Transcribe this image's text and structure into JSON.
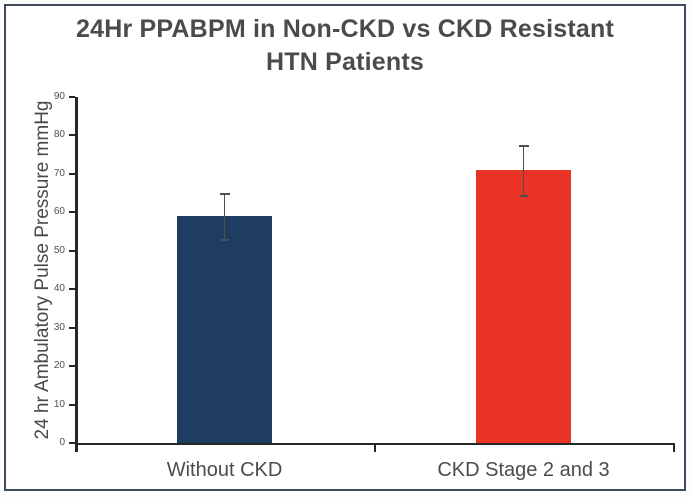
{
  "chart_data": {
    "type": "bar",
    "title": "24Hr PPABPM in Non-CKD vs CKD Resistant HTN Patients",
    "title_lines": [
      "24Hr PPABPM in Non-CKD vs CKD Resistant",
      "HTN Patients"
    ],
    "ylabel": "24 hr Ambulatory Pulse Pressure mmHg",
    "xlabel": "",
    "categories": [
      "Without CKD",
      "CKD Stage 2 and 3"
    ],
    "values": [
      59,
      71
    ],
    "error_bars": [
      6,
      6.5
    ],
    "bar_colors": [
      "#1f3c61",
      "#e93425"
    ],
    "ylim": [
      0,
      90
    ],
    "yticks": [
      0,
      10,
      20,
      30,
      40,
      50,
      60,
      70,
      80,
      90
    ],
    "grid": false,
    "legend": false
  },
  "colors": {
    "frame_border": "#3e4a5c",
    "axis": "#262626",
    "error_bar": "#4f4f4f",
    "title_text": "#4b4b4b",
    "label_text": "#4c4c4c"
  }
}
